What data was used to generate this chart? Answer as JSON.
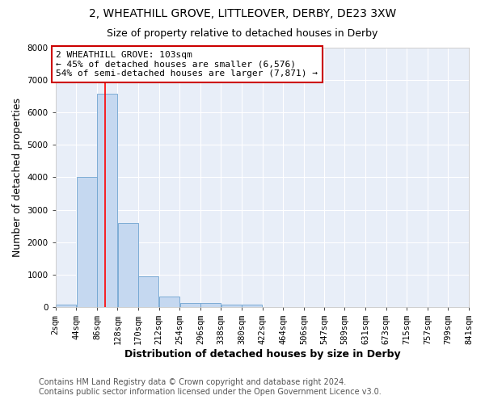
{
  "title1": "2, WHEATHILL GROVE, LITTLEOVER, DERBY, DE23 3XW",
  "title2": "Size of property relative to detached houses in Derby",
  "xlabel": "Distribution of detached houses by size in Derby",
  "ylabel": "Number of detached properties",
  "bar_color": "#c5d8f0",
  "bar_edge_color": "#6ea3d0",
  "red_line_x": 103,
  "bin_edges": [
    2,
    44,
    86,
    128,
    170,
    212,
    254,
    296,
    338,
    380,
    422,
    464,
    506,
    547,
    589,
    631,
    673,
    715,
    757,
    799,
    841
  ],
  "bin_labels": [
    "2sqm",
    "44sqm",
    "86sqm",
    "128sqm",
    "170sqm",
    "212sqm",
    "254sqm",
    "296sqm",
    "338sqm",
    "380sqm",
    "422sqm",
    "464sqm",
    "506sqm",
    "547sqm",
    "589sqm",
    "631sqm",
    "673sqm",
    "715sqm",
    "757sqm",
    "799sqm",
    "841sqm"
  ],
  "bar_heights": [
    80,
    4000,
    6576,
    2600,
    950,
    320,
    130,
    130,
    70,
    70,
    0,
    0,
    0,
    0,
    0,
    0,
    0,
    0,
    0,
    0
  ],
  "ylim": [
    0,
    8000
  ],
  "yticks": [
    0,
    1000,
    2000,
    3000,
    4000,
    5000,
    6000,
    7000,
    8000
  ],
  "annotation_text": "2 WHEATHILL GROVE: 103sqm\n← 45% of detached houses are smaller (6,576)\n54% of semi-detached houses are larger (7,871) →",
  "annotation_box_color": "#ffffff",
  "annotation_box_edge_color": "#cc0000",
  "footer1": "Contains HM Land Registry data © Crown copyright and database right 2024.",
  "footer2": "Contains public sector information licensed under the Open Government Licence v3.0.",
  "bg_color": "#ffffff",
  "plot_bg_color": "#e8eef8",
  "grid_color": "#ffffff",
  "title1_fontsize": 10,
  "title2_fontsize": 9,
  "axis_label_fontsize": 9,
  "tick_fontsize": 7.5,
  "annotation_fontsize": 8,
  "footer_fontsize": 7
}
